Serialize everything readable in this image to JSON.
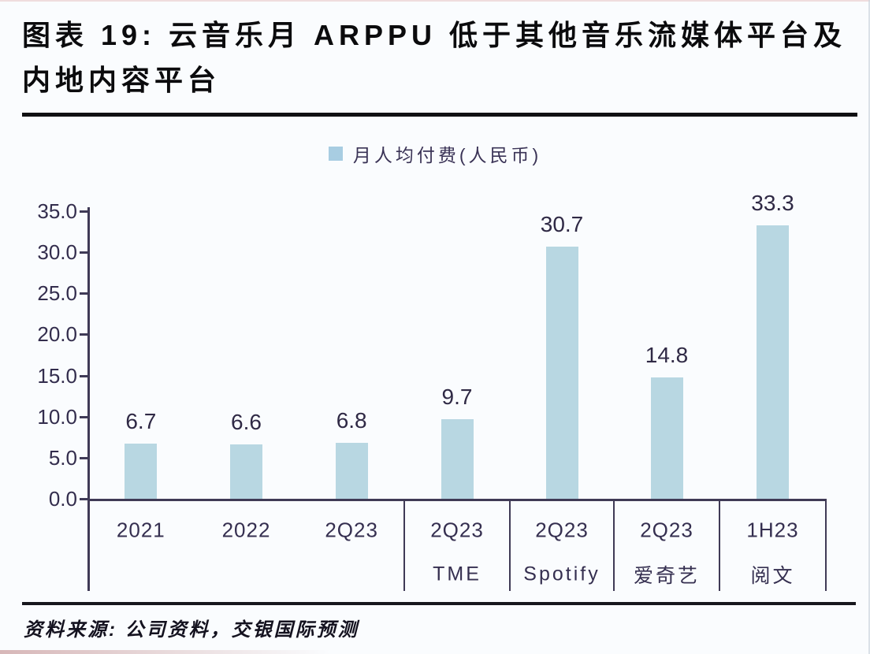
{
  "title": "图表 19: 云音乐月 ARPPU 低于其他音乐流媒体平台及内地内容平台",
  "legend": {
    "label": "月人均付费(人民币)",
    "swatch_color": "#a8cde2"
  },
  "chart_data": {
    "type": "bar",
    "series_label": "月人均付费(人民币)",
    "categories": [
      "2021",
      "2022",
      "2Q23",
      "2Q23",
      "2Q23",
      "2Q23",
      "1H23"
    ],
    "platforms": [
      "",
      "",
      "",
      "TME",
      "Spotify",
      "爱奇艺",
      "阅文"
    ],
    "values": [
      6.7,
      6.6,
      6.8,
      9.7,
      30.7,
      14.8,
      33.3
    ],
    "value_labels": [
      "6.7",
      "6.6",
      "6.8",
      "9.7",
      "30.7",
      "14.8",
      "33.3"
    ],
    "ylim": [
      0,
      35
    ],
    "ytick_labels": [
      "0.0",
      "5.0",
      "10.0",
      "15.0",
      "20.0",
      "25.0",
      "30.0",
      "35.0"
    ],
    "ytick_step": 5,
    "grid": false,
    "legend_position": "top-center",
    "bar_color": "#b8d7e2",
    "axis_color": "#3f3a56",
    "text_color": "#332d4d"
  },
  "footer": {
    "source": "资料来源: 公司资料，交银国际预测"
  }
}
